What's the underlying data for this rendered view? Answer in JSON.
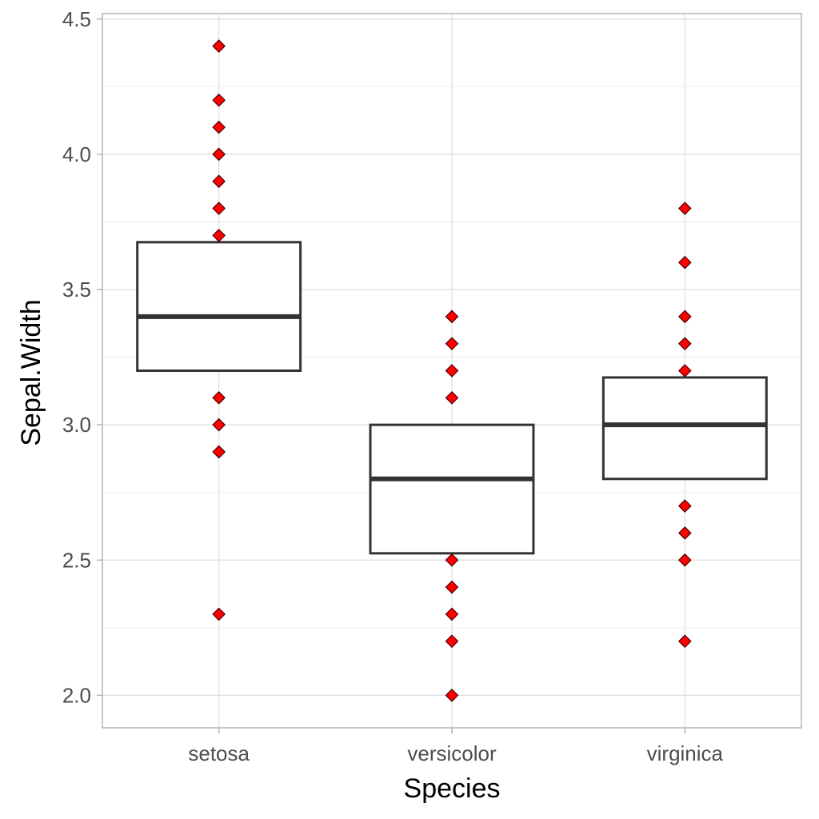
{
  "chart_data": {
    "type": "box",
    "xlabel": "Species",
    "ylabel": "Sepal.Width",
    "ylim": [
      1.88,
      4.52
    ],
    "y_ticks": [
      "2.0",
      "2.5",
      "3.0",
      "3.5",
      "4.0",
      "4.5"
    ],
    "categories": [
      "setosa",
      "versicolor",
      "virginica"
    ],
    "grid": true,
    "point_shape": "diamond",
    "point_color": "#ff0000",
    "box_stroke_color": "#333333",
    "boxes": [
      {
        "category": "setosa",
        "q1": 3.2,
        "median": 3.4,
        "q3": 3.675
      },
      {
        "category": "versicolor",
        "q1": 2.525,
        "median": 2.8,
        "q3": 3.0
      },
      {
        "category": "virginica",
        "q1": 2.8,
        "median": 3.0,
        "q3": 3.175
      }
    ],
    "points": [
      {
        "category": "setosa",
        "values": [
          4.4,
          4.2,
          4.1,
          4.0,
          3.9,
          3.8,
          3.7,
          3.1,
          3.0,
          2.9,
          2.3
        ]
      },
      {
        "category": "versicolor",
        "values": [
          3.4,
          3.3,
          3.2,
          3.1,
          2.5,
          2.4,
          2.3,
          2.2,
          2.0
        ]
      },
      {
        "category": "virginica",
        "values": [
          3.8,
          3.6,
          3.4,
          3.3,
          3.2,
          2.7,
          2.6,
          2.5,
          2.2
        ]
      }
    ]
  }
}
